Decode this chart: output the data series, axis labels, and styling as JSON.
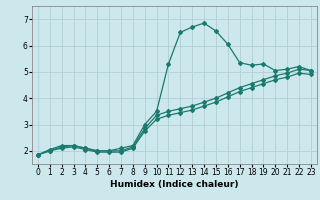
{
  "title": "",
  "xlabel": "Humidex (Indice chaleur)",
  "background_color": "#cde8ec",
  "grid_color": "#b0d0d5",
  "line_color": "#1a7a6e",
  "xlim": [
    -0.5,
    23.5
  ],
  "ylim": [
    1.5,
    7.5
  ],
  "xticks": [
    0,
    1,
    2,
    3,
    4,
    5,
    6,
    7,
    8,
    9,
    10,
    11,
    12,
    13,
    14,
    15,
    16,
    17,
    18,
    19,
    20,
    21,
    22,
    23
  ],
  "yticks": [
    2,
    3,
    4,
    5,
    6,
    7
  ],
  "series1_x": [
    0,
    1,
    2,
    3,
    4,
    5,
    6,
    7,
    8,
    9,
    10,
    11,
    12,
    13,
    14,
    15,
    16,
    17,
    18,
    19,
    20,
    21,
    22,
    23
  ],
  "series1_y": [
    1.85,
    2.05,
    2.2,
    2.2,
    2.1,
    2.0,
    2.0,
    2.1,
    2.2,
    3.0,
    3.5,
    5.3,
    6.5,
    6.7,
    6.85,
    6.55,
    6.05,
    5.35,
    5.25,
    5.3,
    5.05,
    5.1,
    5.2,
    5.05
  ],
  "series2_x": [
    0,
    1,
    2,
    3,
    4,
    5,
    6,
    7,
    8,
    9,
    10,
    11,
    12,
    13,
    14,
    15,
    16,
    17,
    18,
    19,
    20,
    21,
    22,
    23
  ],
  "series2_y": [
    1.85,
    2.0,
    2.15,
    2.2,
    2.1,
    2.0,
    2.0,
    2.0,
    2.15,
    2.85,
    3.35,
    3.5,
    3.6,
    3.7,
    3.85,
    4.0,
    4.2,
    4.4,
    4.55,
    4.7,
    4.85,
    4.95,
    5.1,
    5.05
  ],
  "series3_x": [
    0,
    1,
    2,
    3,
    4,
    5,
    6,
    7,
    8,
    9,
    10,
    11,
    12,
    13,
    14,
    15,
    16,
    17,
    18,
    19,
    20,
    21,
    22,
    23
  ],
  "series3_y": [
    1.85,
    2.0,
    2.1,
    2.15,
    2.05,
    1.95,
    1.95,
    1.95,
    2.1,
    2.75,
    3.2,
    3.35,
    3.45,
    3.55,
    3.7,
    3.85,
    4.05,
    4.25,
    4.4,
    4.55,
    4.7,
    4.8,
    4.95,
    4.9
  ],
  "marker": "D",
  "markersize": 2.0,
  "linewidth": 0.9,
  "tick_fontsize": 5.5,
  "xlabel_fontsize": 6.5
}
